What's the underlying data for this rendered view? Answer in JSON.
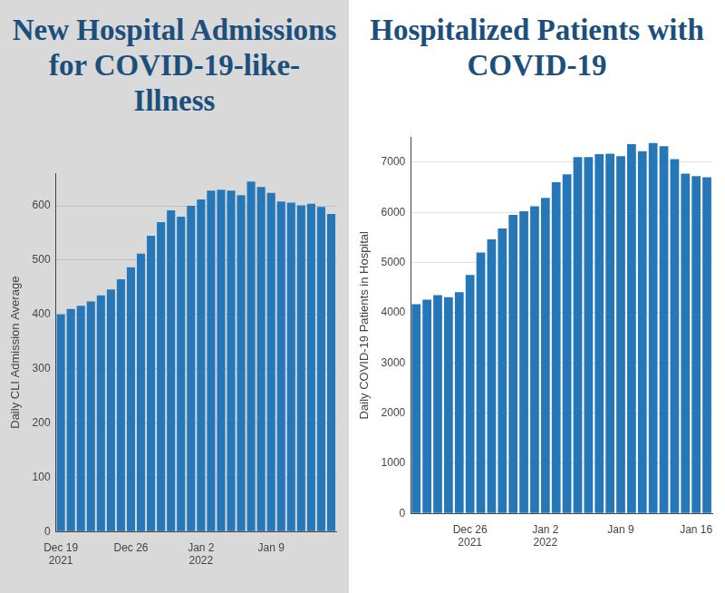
{
  "chart_data": [
    {
      "type": "bar",
      "title": "New Hospital Admissions for COVID-19-like-Illness",
      "ylabel": "Daily CLI Admission Average",
      "categories": [
        "Dec 19\n2021",
        null,
        null,
        null,
        null,
        null,
        null,
        "Dec 26",
        null,
        null,
        null,
        null,
        null,
        null,
        "Jan 2\n2022",
        null,
        null,
        null,
        null,
        null,
        null,
        "Jan 9",
        null,
        null,
        null,
        null,
        null,
        null
      ],
      "values": [
        400,
        410,
        416,
        424,
        435,
        446,
        465,
        487,
        512,
        545,
        570,
        592,
        580,
        600,
        612,
        628,
        630,
        628,
        620,
        645,
        635,
        624,
        608,
        606,
        601,
        604,
        598,
        585
      ],
      "color": "#2677b8",
      "ylim": [
        0,
        660
      ],
      "yticks": [
        0,
        100,
        200,
        300,
        400,
        500,
        600
      ],
      "grid": true
    },
    {
      "type": "bar",
      "title": "Hospitalized Patients with COVID-19",
      "ylabel": "Daily COVID-19 Patients in Hospital",
      "categories": [
        null,
        null,
        null,
        null,
        null,
        "Dec 26\n2021",
        null,
        null,
        null,
        null,
        null,
        null,
        "Jan 2\n2022",
        null,
        null,
        null,
        null,
        null,
        null,
        "Jan 9",
        null,
        null,
        null,
        null,
        null,
        null,
        "Jan 16",
        null
      ],
      "values": [
        4170,
        4260,
        4350,
        4310,
        4410,
        4750,
        5200,
        5460,
        5680,
        5950,
        6020,
        6120,
        6290,
        6600,
        6760,
        7100,
        7100,
        7160,
        7170,
        7120,
        7360,
        7220,
        7380,
        7320,
        7060,
        6770,
        6720,
        6700
      ],
      "color": "#2677b8",
      "ylim": [
        0,
        7500
      ],
      "yticks": [
        0,
        1000,
        2000,
        3000,
        4000,
        5000,
        6000,
        7000
      ],
      "grid": true
    }
  ]
}
